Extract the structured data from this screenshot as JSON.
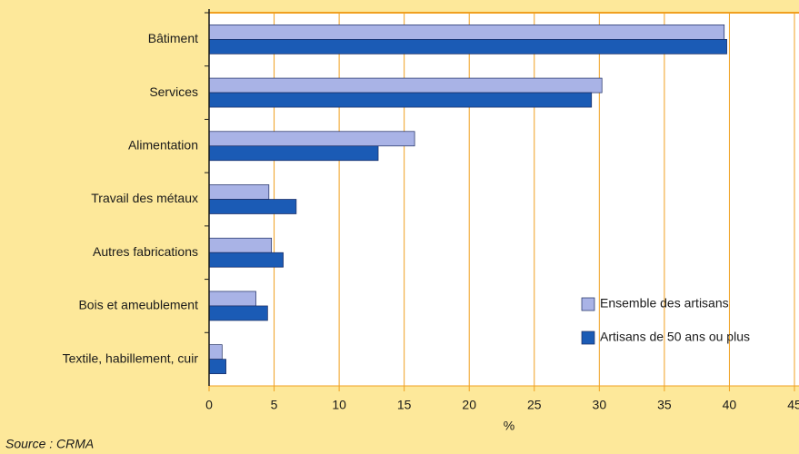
{
  "chart_data": {
    "type": "bar",
    "orientation": "horizontal",
    "categories": [
      "Bâtiment",
      "Services",
      "Alimentation",
      "Travail des métaux",
      "Autres fabrications",
      "Bois et ameublement",
      "Textile, habillement, cuir"
    ],
    "series": [
      {
        "name": "Ensemble des artisans",
        "color": "#a9b3e6",
        "values": [
          39.6,
          30.2,
          15.8,
          4.6,
          4.8,
          3.6,
          1.0
        ]
      },
      {
        "name": "Artisans de 50 ans ou plus",
        "color": "#1b5bb5",
        "values": [
          39.8,
          29.4,
          13.0,
          6.7,
          5.7,
          4.5,
          1.3
        ]
      }
    ],
    "xlabel": "%",
    "xlim": [
      0,
      45
    ],
    "xticks": [
      0,
      5,
      10,
      15,
      20,
      25,
      30,
      35,
      40,
      45
    ],
    "grid": true,
    "legend": "lower right",
    "source": "Source : CRMA"
  }
}
